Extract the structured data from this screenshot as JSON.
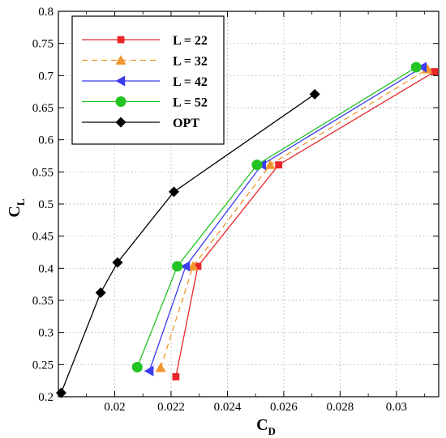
{
  "chart_data": {
    "type": "line",
    "xlabel": {
      "main": "C",
      "sub": "D"
    },
    "ylabel": {
      "main": "C",
      "sub": "L"
    },
    "xlim": [
      0.018,
      0.0315
    ],
    "ylim": [
      0.2,
      0.8
    ],
    "x_ticks": [
      0.02,
      0.022,
      0.024,
      0.026,
      0.028,
      0.03
    ],
    "x_tick_labels": [
      "0.02",
      "0.022",
      "0.024",
      "0.026",
      "0.028",
      "0.03"
    ],
    "y_ticks": [
      0.2,
      0.25,
      0.3,
      0.35,
      0.4,
      0.45,
      0.5,
      0.55,
      0.6,
      0.65,
      0.7,
      0.75,
      0.8
    ],
    "y_tick_labels": [
      "0.2",
      "0.25",
      "0.3",
      "0.35",
      "0.4",
      "0.45",
      "0.5",
      "0.55",
      "0.6",
      "0.65",
      "0.7",
      "0.75",
      "0.8"
    ],
    "grid": "dotted",
    "legend_position": "top-left",
    "series": [
      {
        "name": "L = 22",
        "color": "#e8262a",
        "marker": "square",
        "dash": "solid",
        "x": [
          0.02217,
          0.02295,
          0.02582,
          0.03135
        ],
        "y": [
          0.231,
          0.403,
          0.561,
          0.706
        ]
      },
      {
        "name": "L = 32",
        "color": "#f0962c",
        "marker": "triangle-up",
        "dash": "dashed",
        "x": [
          0.02163,
          0.02278,
          0.02552,
          0.0311
        ],
        "y": [
          0.245,
          0.403,
          0.561,
          0.71
        ]
      },
      {
        "name": "L = 42",
        "color": "#3b3bf0",
        "marker": "triangle-left",
        "dash": "solid",
        "x": [
          0.02123,
          0.02252,
          0.02522,
          0.03092
        ],
        "y": [
          0.24,
          0.403,
          0.561,
          0.713
        ]
      },
      {
        "name": "L = 52",
        "color": "#22c422",
        "marker": "circle",
        "dash": "solid",
        "x": [
          0.0208,
          0.02222,
          0.02505,
          0.0307
        ],
        "y": [
          0.246,
          0.403,
          0.561,
          0.713
        ]
      },
      {
        "name": "OPT",
        "color": "#000000",
        "marker": "diamond",
        "dash": "solid",
        "x": [
          0.0181,
          0.0195,
          0.0201,
          0.0221,
          0.0271
        ],
        "y": [
          0.206,
          0.362,
          0.409,
          0.519,
          0.671
        ]
      }
    ]
  }
}
